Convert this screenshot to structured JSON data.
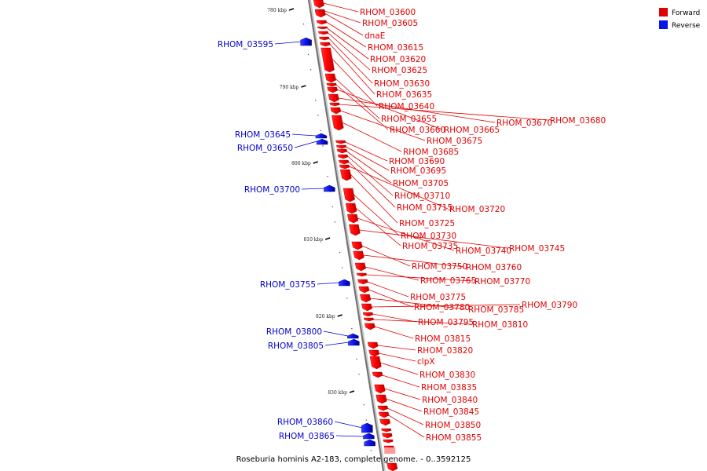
{
  "caption": "Roseburia hominis A2-183, complete genome. - 0..3592125",
  "legend": {
    "forward_label": "Forward",
    "reverse_label": "Reverse",
    "forward_color": "#e00000",
    "reverse_color": "#0a14e6"
  },
  "ruler": [
    {
      "label": "780 kbp"
    },
    {
      "label": "790 kbp"
    },
    {
      "label": "800 kbp"
    },
    {
      "label": "810 kbp"
    },
    {
      "label": "820 kbp"
    },
    {
      "label": "830 kbp"
    }
  ],
  "forward_genes": [
    {
      "label": "RHOM_03600"
    },
    {
      "label": "RHOM_03605"
    },
    {
      "label": "dnaE"
    },
    {
      "label": "RHOM_03615"
    },
    {
      "label": "RHOM_03620"
    },
    {
      "label": "RHOM_03625"
    },
    {
      "label": "RHOM_03630"
    },
    {
      "label": "RHOM_03635"
    },
    {
      "label": "RHOM_03640"
    },
    {
      "label": "RHOM_03655"
    },
    {
      "label": "RHOM_03660"
    },
    {
      "label": "RHOM_03665"
    },
    {
      "label": "RHOM_03670"
    },
    {
      "label": "RHOM_03680"
    },
    {
      "label": "RHOM_03675"
    },
    {
      "label": "RHOM_03685"
    },
    {
      "label": "RHOM_03690"
    },
    {
      "label": "RHOM_03695"
    },
    {
      "label": "RHOM_03705"
    },
    {
      "label": "RHOM_03710"
    },
    {
      "label": "RHOM_03715"
    },
    {
      "label": "RHOM_03720"
    },
    {
      "label": "RHOM_03725"
    },
    {
      "label": "RHOM_03730"
    },
    {
      "label": "RHOM_03735"
    },
    {
      "label": "RHOM_03740"
    },
    {
      "label": "RHOM_03745"
    },
    {
      "label": "RHOM_03750"
    },
    {
      "label": "RHOM_03760"
    },
    {
      "label": "RHOM_03765"
    },
    {
      "label": "RHOM_03770"
    },
    {
      "label": "RHOM_03775"
    },
    {
      "label": "RHOM_03780"
    },
    {
      "label": "RHOM_03785"
    },
    {
      "label": "RHOM_03790"
    },
    {
      "label": "RHOM_03795"
    },
    {
      "label": "RHOM_03810"
    },
    {
      "label": "RHOM_03815"
    },
    {
      "label": "RHOM_03820"
    },
    {
      "label": "clpX"
    },
    {
      "label": "RHOM_03830"
    },
    {
      "label": "RHOM_03835"
    },
    {
      "label": "RHOM_03840"
    },
    {
      "label": "RHOM_03845"
    },
    {
      "label": "RHOM_03850"
    },
    {
      "label": "RHOM_03855"
    }
  ],
  "reverse_genes": [
    {
      "label": "RHOM_03595"
    },
    {
      "label": "RHOM_03645"
    },
    {
      "label": "RHOM_03650"
    },
    {
      "label": "RHOM_03700"
    },
    {
      "label": "RHOM_03755"
    },
    {
      "label": "RHOM_03800"
    },
    {
      "label": "RHOM_03805"
    },
    {
      "label": "RHOM_03860"
    },
    {
      "label": "RHOM_03865"
    }
  ]
}
